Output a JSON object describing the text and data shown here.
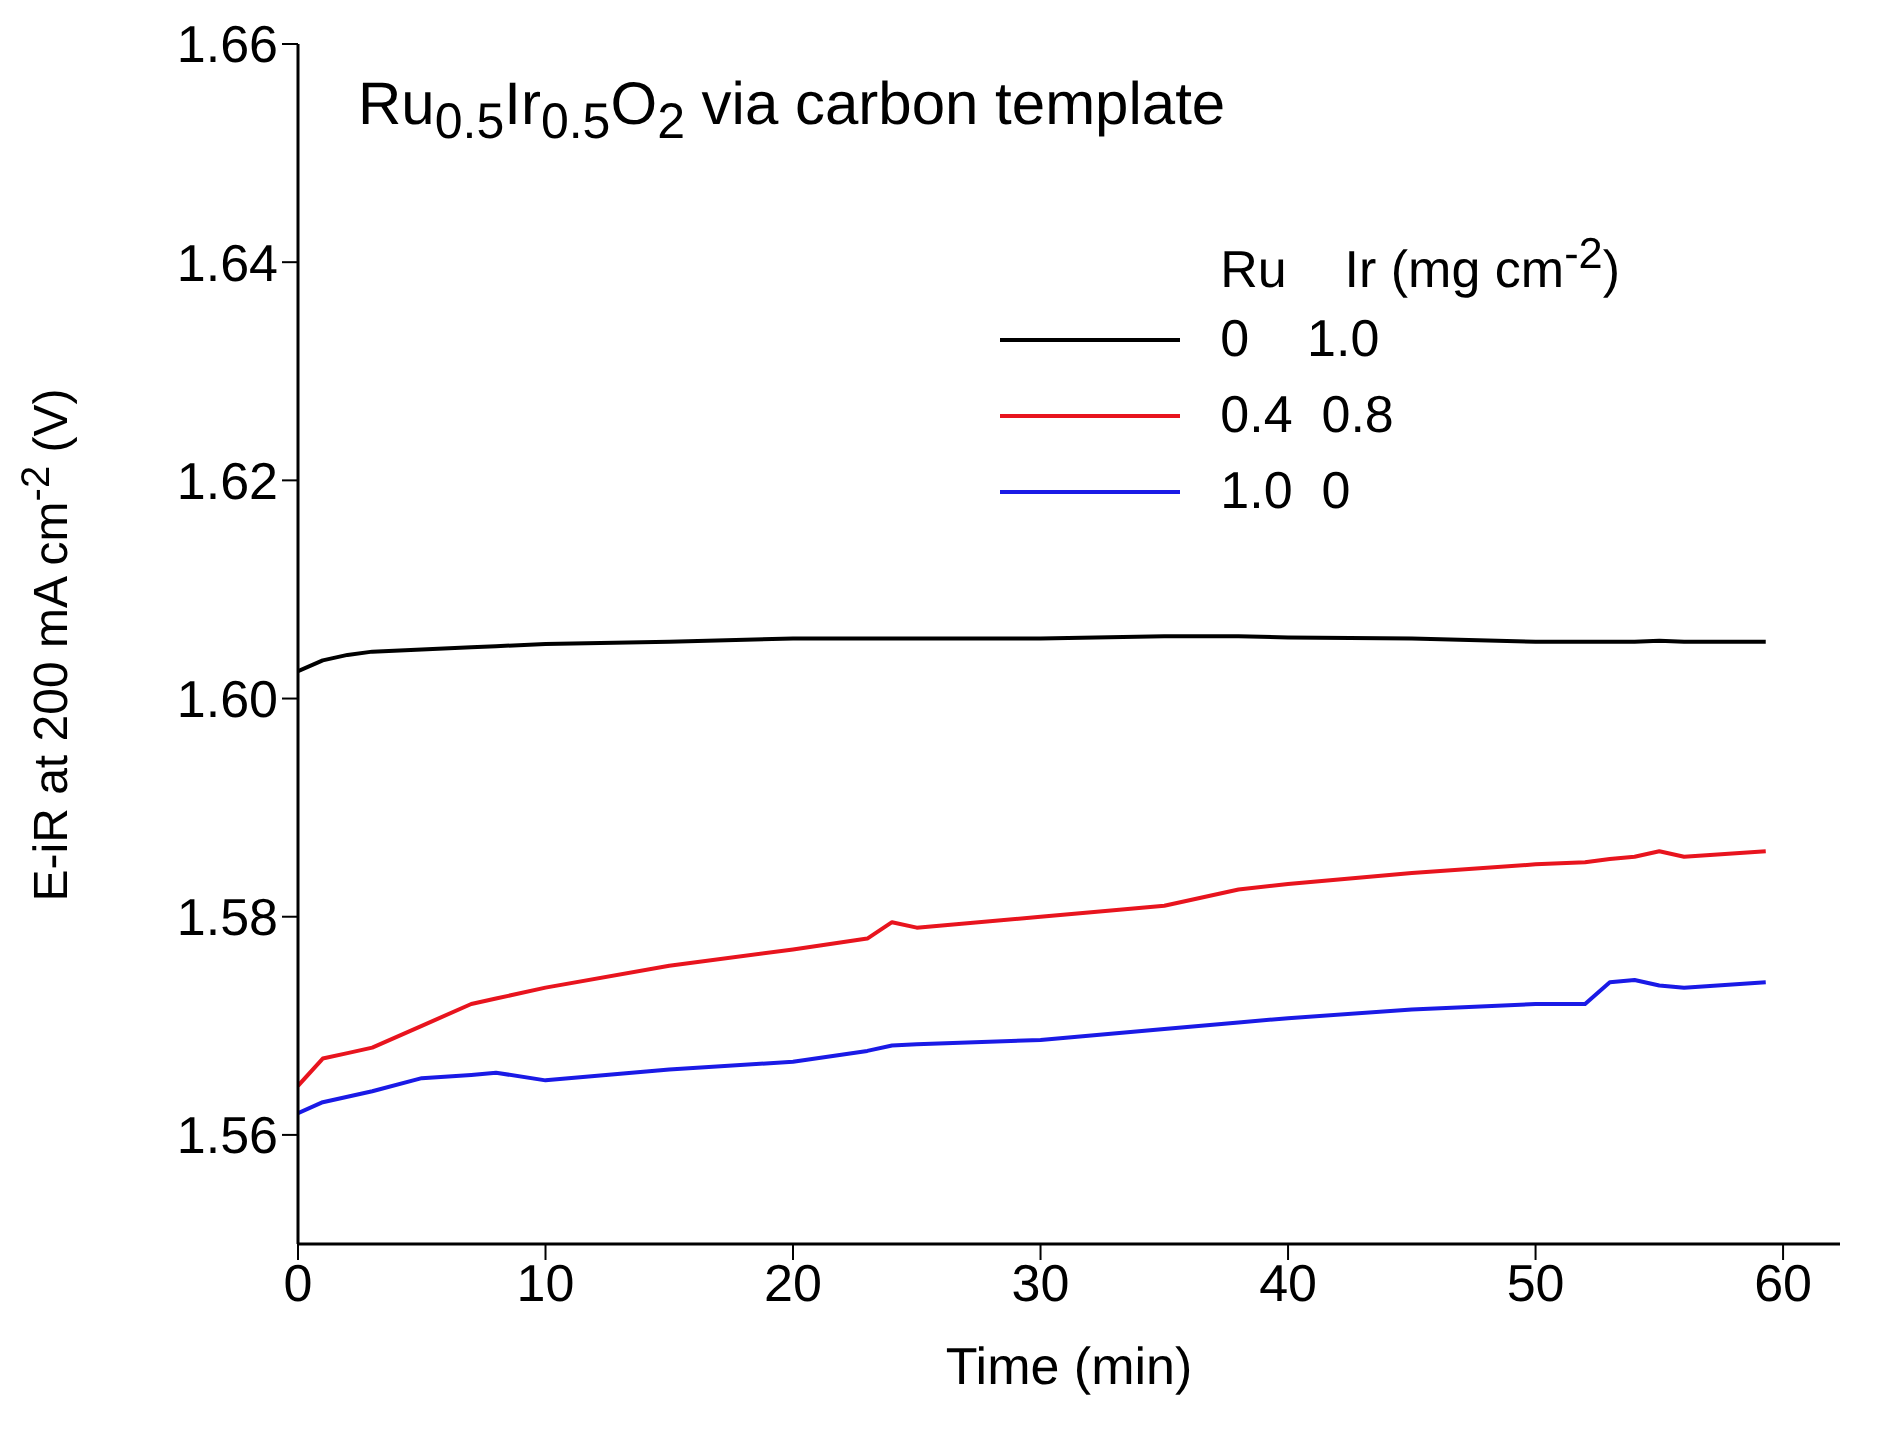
{
  "chart_data": {
    "type": "line",
    "title": "Ru$_{0.5}$Ir$_{0.5}$O$_{2}$ via carbon template",
    "xlabel": "Time (min)",
    "ylabel": "E-iR at 200 mA cm$^{-2}$ (V)",
    "legend_title": "Ru    Ir (mg cm$^{-2}$)",
    "xlim": [
      0,
      62.3
    ],
    "xticks": [
      0,
      10,
      20,
      30,
      40,
      50,
      60
    ],
    "ylim": [
      1.55,
      1.66
    ],
    "yticks": [
      1.56,
      1.58,
      {
        "value": 1.6,
        "label": "1.60"
      },
      1.62,
      1.64,
      1.66
    ],
    "grid": false,
    "legend": "top right",
    "line_style": "solid",
    "marker": "none",
    "x": [
      0,
      1,
      2,
      3,
      5,
      7,
      8,
      10,
      15,
      20,
      23,
      24,
      25,
      30,
      35,
      38,
      40,
      45,
      50,
      52,
      53,
      54,
      55,
      56,
      59.3
    ],
    "series": [
      {
        "name": "0    1.0",
        "color": "#000000",
        "values": [
          1.6025,
          1.6035,
          1.604,
          1.6043,
          1.6045,
          1.6047,
          1.6048,
          1.605,
          1.6052,
          1.6055,
          1.6055,
          1.6055,
          1.6055,
          1.6055,
          1.6057,
          1.6057,
          1.6056,
          1.6055,
          1.6052,
          1.6052,
          1.6052,
          1.6052,
          1.6053,
          1.6052,
          1.6052
        ]
      },
      {
        "name": "0.4  0.8",
        "color": "#e8141e",
        "values": [
          1.5645,
          1.567,
          1.5675,
          1.568,
          1.57,
          1.572,
          1.5725,
          1.5735,
          1.5755,
          1.577,
          1.578,
          1.5795,
          1.579,
          1.58,
          1.581,
          1.5825,
          1.583,
          1.584,
          1.5848,
          1.585,
          1.5853,
          1.5855,
          1.586,
          1.5855,
          1.586
        ]
      },
      {
        "name": "1.0  0",
        "color": "#1a1ae6",
        "values": [
          1.562,
          1.563,
          1.5635,
          1.564,
          1.5652,
          1.5655,
          1.5657,
          1.565,
          1.566,
          1.5667,
          1.5677,
          1.5682,
          1.5683,
          1.5687,
          1.5697,
          1.5703,
          1.5707,
          1.5715,
          1.572,
          1.572,
          1.574,
          1.5742,
          1.5737,
          1.5735,
          1.574
        ]
      }
    ]
  }
}
